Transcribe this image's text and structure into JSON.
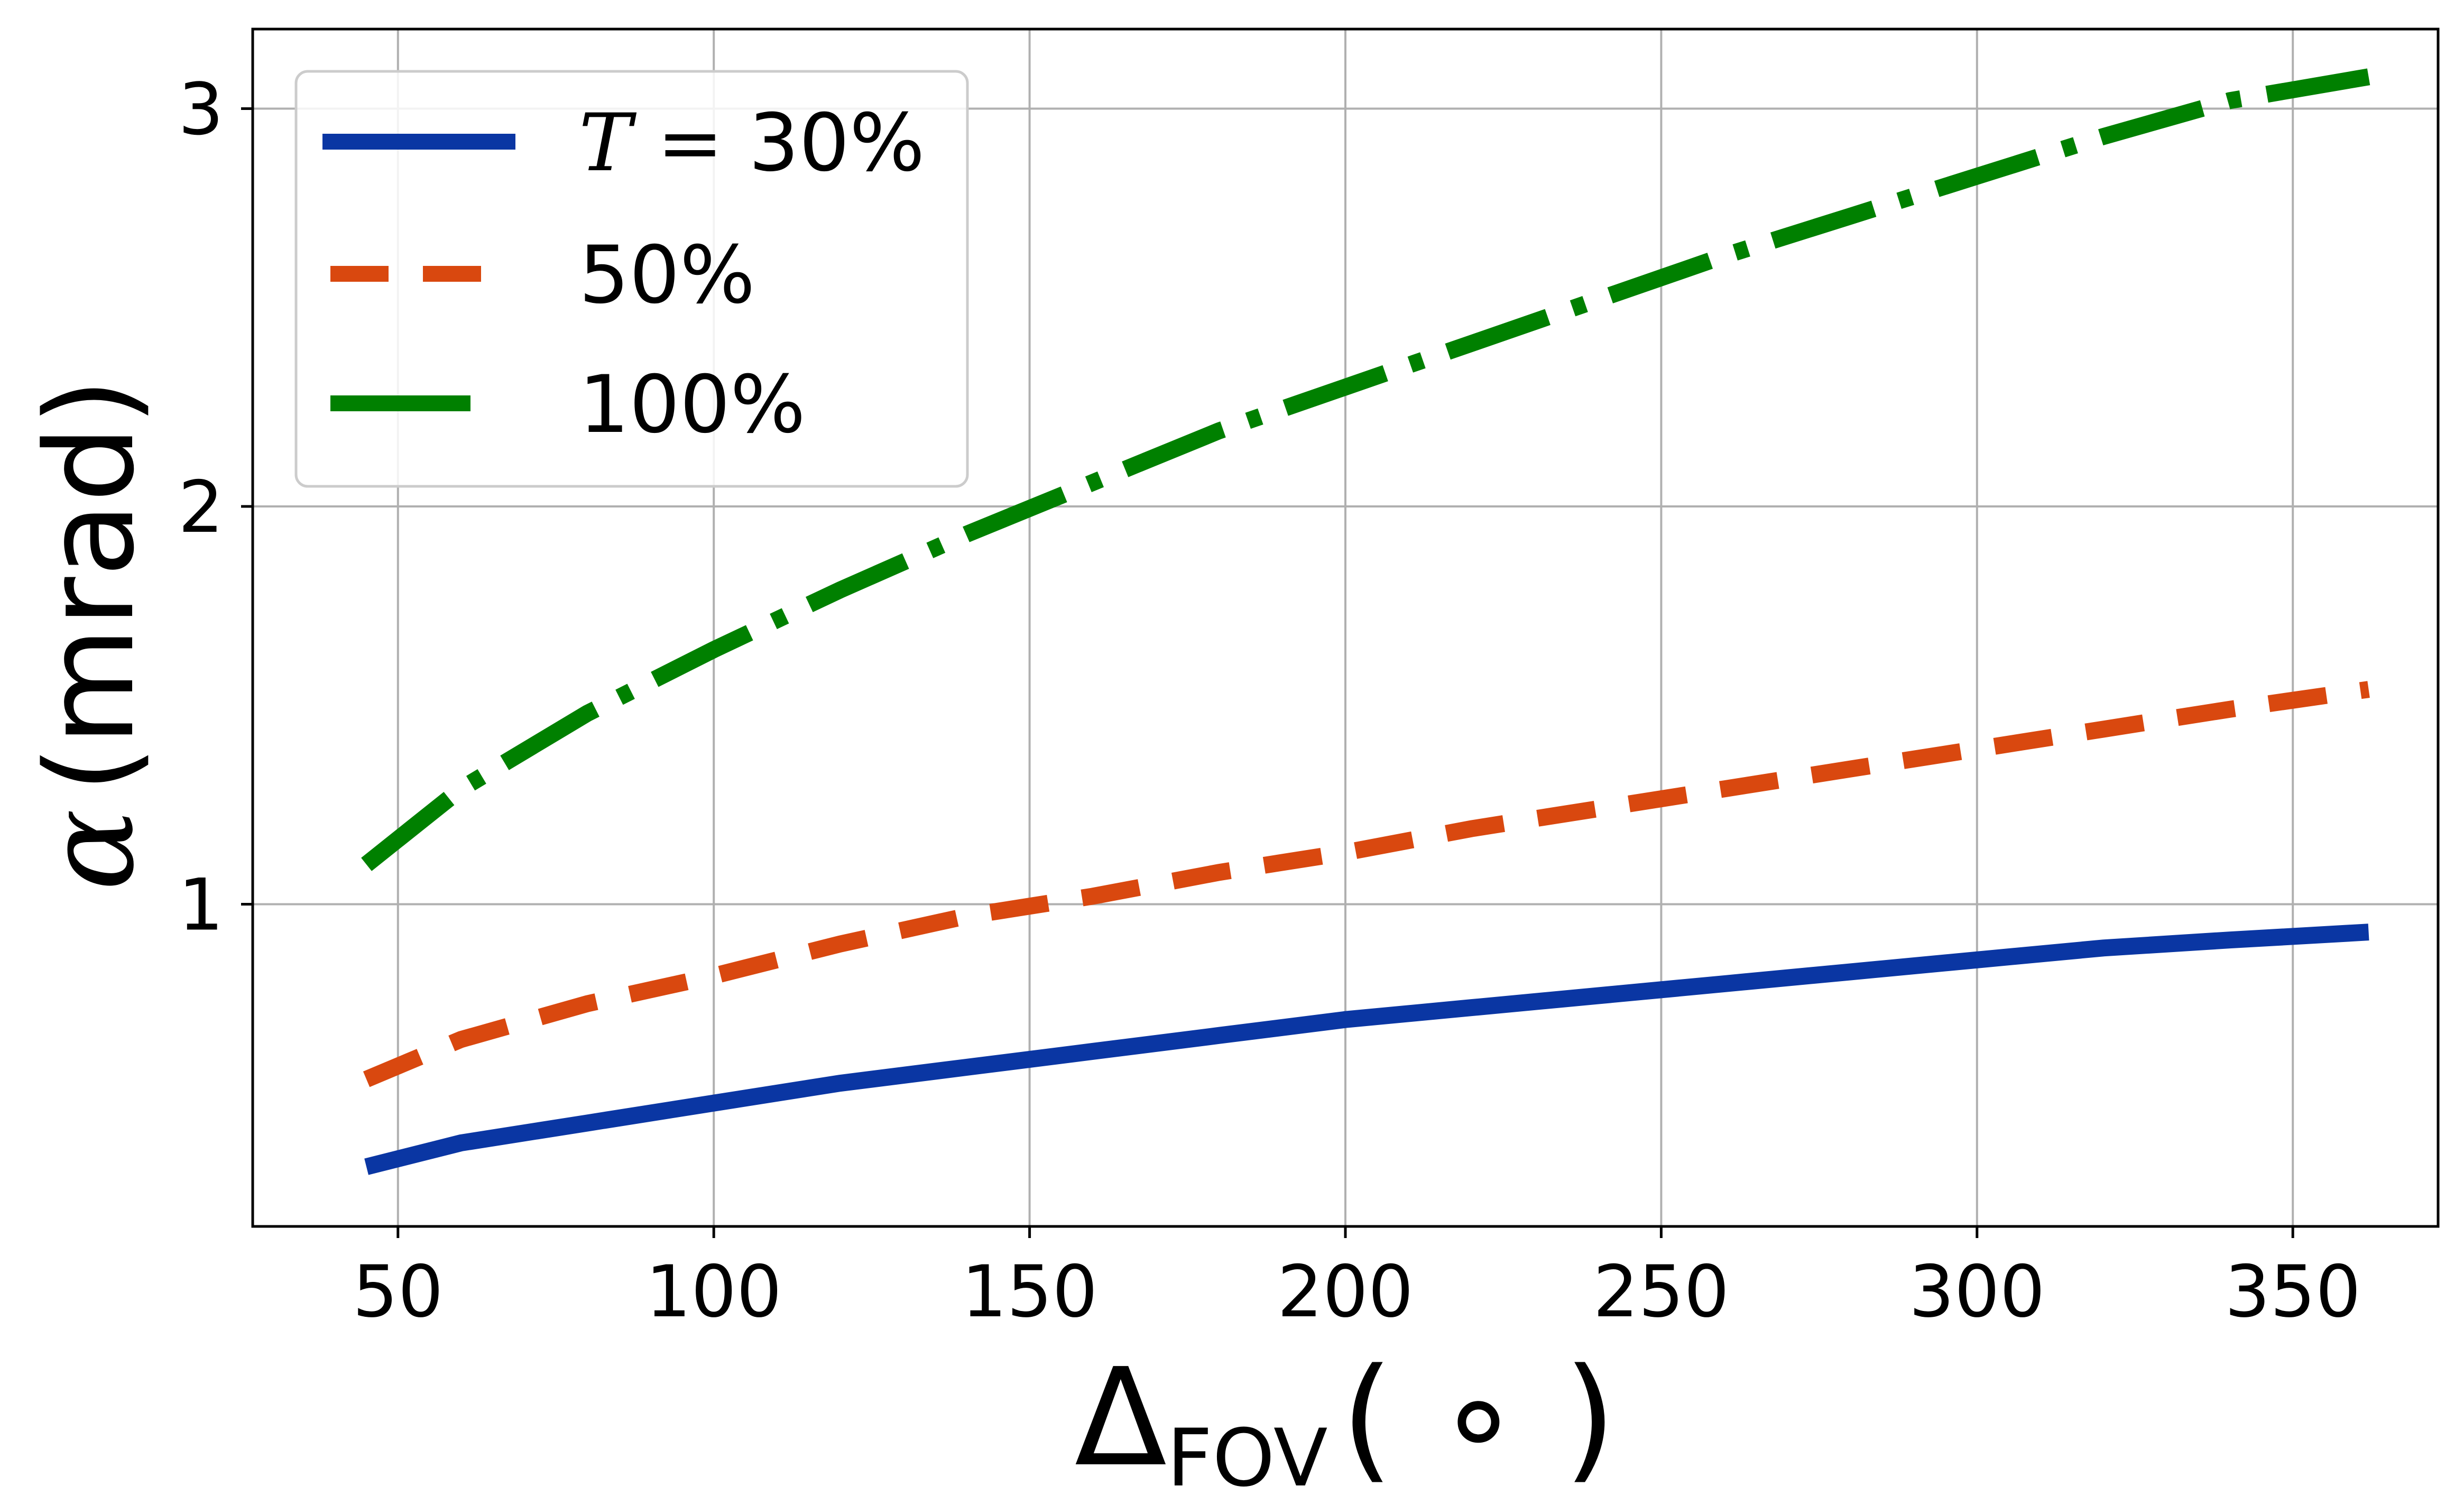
{
  "chart_data": {
    "type": "line",
    "xlabel": {
      "main": "Δ",
      "sub": "FOV",
      "unit": "( ∘ )"
    },
    "ylabel": {
      "symbol": "α",
      "unit": "(mrad)",
      "color": "#0a36a3"
    },
    "xlim": [
      27,
      373
    ],
    "ylim": [
      0.19,
      3.2
    ],
    "xticks": [
      50,
      100,
      150,
      200,
      250,
      300,
      350
    ],
    "yticks": [
      1,
      2,
      3
    ],
    "grid": true,
    "legend": {
      "position": "top-left",
      "title_prefix": "T = ",
      "entries": [
        "30%",
        "50%",
        "100%"
      ]
    },
    "x": [
      45,
      60,
      80,
      100,
      120,
      140,
      160,
      180,
      200,
      220,
      240,
      260,
      280,
      300,
      320,
      340,
      362
    ],
    "series": [
      {
        "name": "30%",
        "color": "#0a36a3",
        "dash": "solid",
        "values": [
          0.34,
          0.4,
          0.45,
          0.5,
          0.55,
          0.59,
          0.63,
          0.67,
          0.71,
          0.74,
          0.77,
          0.8,
          0.83,
          0.86,
          0.89,
          0.91,
          0.93
        ]
      },
      {
        "name": "50%",
        "color": "#d9480f",
        "dash": "dashed",
        "values": [
          0.56,
          0.66,
          0.75,
          0.82,
          0.9,
          0.97,
          1.02,
          1.08,
          1.13,
          1.19,
          1.24,
          1.29,
          1.34,
          1.39,
          1.44,
          1.49,
          1.54
        ]
      },
      {
        "name": "100%",
        "color": "#008000",
        "dash": "dashdot",
        "values": [
          1.1,
          1.29,
          1.48,
          1.64,
          1.79,
          1.93,
          2.06,
          2.19,
          2.3,
          2.41,
          2.52,
          2.63,
          2.73,
          2.83,
          2.93,
          3.02,
          3.08
        ]
      }
    ]
  }
}
